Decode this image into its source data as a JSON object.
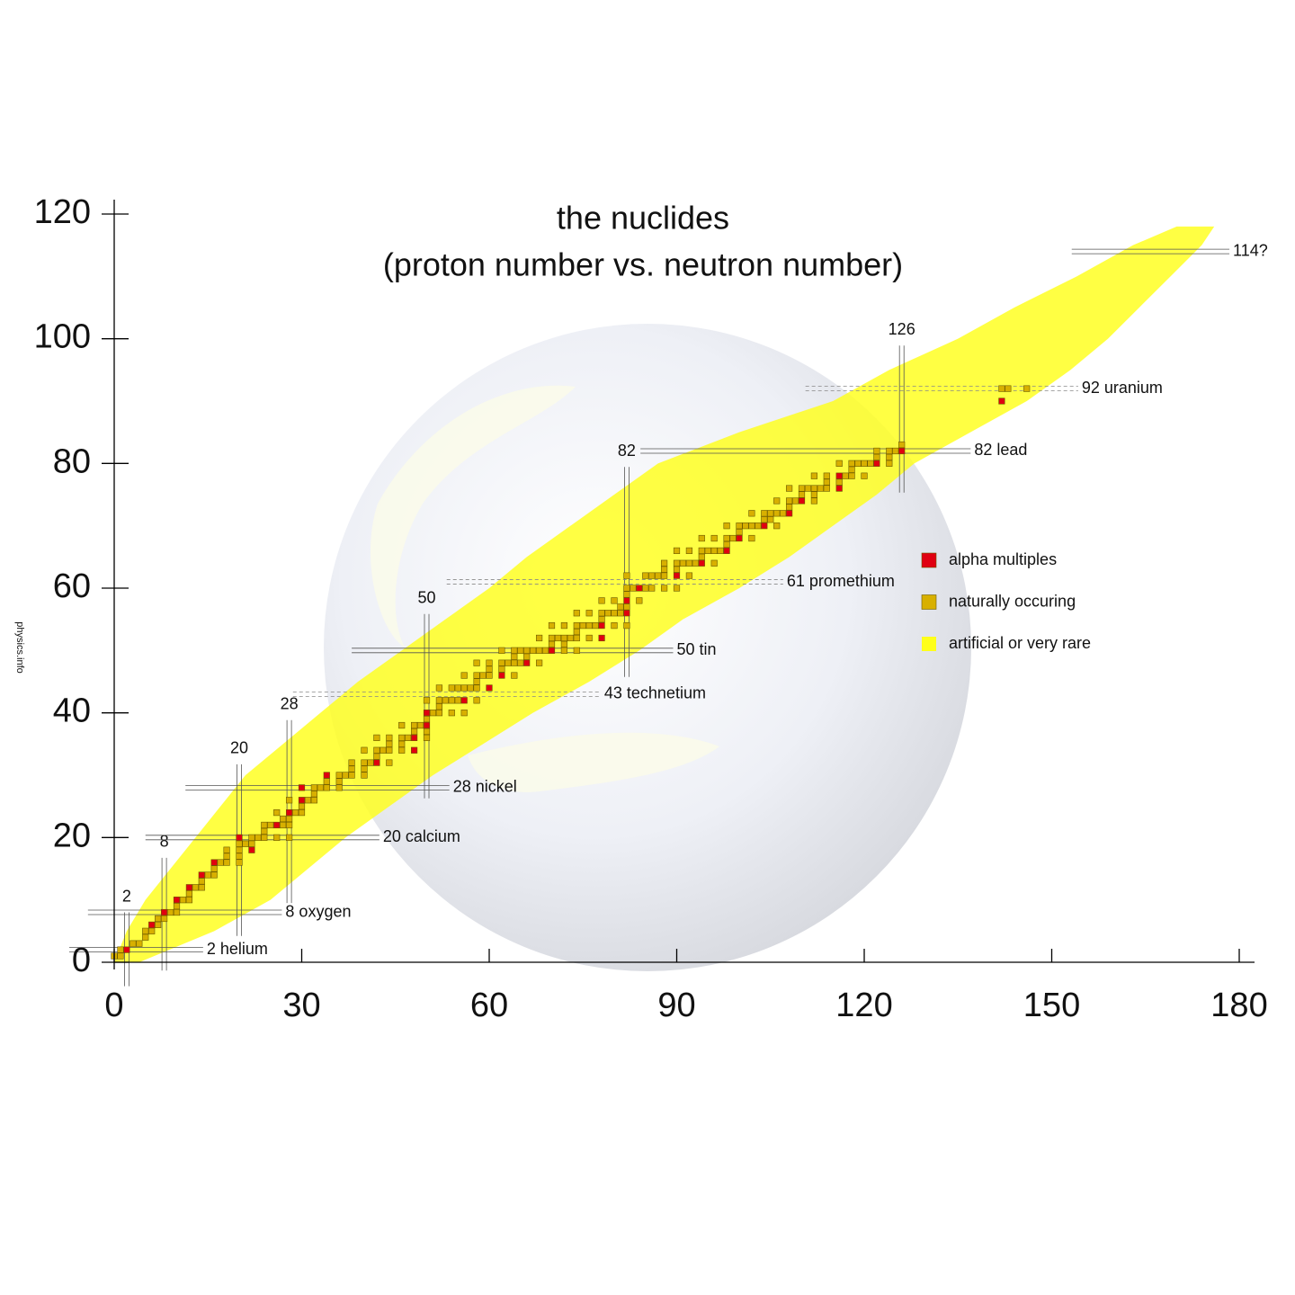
{
  "chart_data": {
    "type": "scatter",
    "title": "the nuclides",
    "subtitle": "(proton number vs. neutron number)",
    "credit": "physics.info",
    "xlim": [
      0,
      180
    ],
    "xticks": [
      0,
      30,
      60,
      90,
      120,
      150,
      180
    ],
    "ylim": [
      0,
      120
    ],
    "yticks": [
      0,
      20,
      40,
      60,
      80,
      100,
      120
    ],
    "legend": "right",
    "neutron_magic": [
      2,
      8,
      20,
      28,
      50,
      82,
      126
    ],
    "proton_lines": [
      {
        "value": 2,
        "label": "2 helium"
      },
      {
        "value": 8,
        "label": "8 oxygen"
      },
      {
        "value": 20,
        "label": "20 calcium"
      },
      {
        "value": 28,
        "label": "28 nickel"
      },
      {
        "value": 43,
        "label": "43 technetium",
        "dashed": true
      },
      {
        "value": 50,
        "label": "50 tin"
      },
      {
        "value": 61,
        "label": "61 promethium",
        "dashed": true
      },
      {
        "value": 82,
        "label": "82 lead"
      },
      {
        "value": 92,
        "label": "92 uranium",
        "dashed": true
      },
      {
        "value": 114,
        "label": "114?"
      }
    ],
    "series": [
      {
        "name": "alpha multiples",
        "color": "#e00010",
        "x": [
          2,
          6,
          8,
          10,
          12,
          14,
          16,
          22,
          20,
          26,
          28,
          30,
          30,
          34,
          42,
          48,
          48,
          50,
          50,
          56,
          60,
          62,
          66,
          70,
          78,
          78,
          82,
          82,
          84,
          90,
          94,
          98,
          100,
          104,
          108,
          110,
          116,
          116,
          122,
          126,
          142
        ],
        "values": [
          2,
          6,
          8,
          10,
          12,
          14,
          16,
          18,
          20,
          22,
          24,
          26,
          28,
          30,
          32,
          34,
          36,
          38,
          40,
          42,
          44,
          46,
          48,
          50,
          52,
          54,
          56,
          58,
          60,
          62,
          64,
          66,
          68,
          70,
          72,
          74,
          76,
          78,
          80,
          82,
          90
        ]
      },
      {
        "name": "naturally occuring",
        "color": "#d8b000",
        "x": [
          0,
          1,
          1,
          3,
          4,
          5,
          5,
          6,
          7,
          7,
          8,
          9,
          10,
          10,
          11,
          12,
          12,
          13,
          14,
          14,
          15,
          16,
          16,
          17,
          18,
          20,
          18,
          20,
          18,
          20,
          20,
          21,
          22,
          22,
          23,
          24,
          26,
          28,
          24,
          24,
          25,
          27,
          28,
          27,
          28,
          26,
          29,
          30,
          30,
          28,
          31,
          32,
          32,
          32,
          33,
          34,
          36,
          34,
          36,
          36,
          37,
          38,
          40,
          38,
          40,
          38,
          40,
          41,
          44,
          42,
          40,
          42,
          43,
          44,
          46,
          44,
          46,
          42,
          44,
          46,
          47,
          50,
          48,
          50,
          46,
          48,
          49,
          50,
          51,
          52,
          54,
          56,
          52,
          50,
          52,
          53,
          54,
          55,
          58,
          52,
          54,
          55,
          56,
          57,
          58,
          58,
          56,
          58,
          59,
          60,
          64,
          60,
          62,
          58,
          60,
          62,
          63,
          64,
          65,
          68,
          64,
          66,
          62,
          64,
          65,
          66,
          67,
          68,
          69,
          72,
          74,
          70,
          72,
          68,
          70,
          71,
          72,
          73,
          74,
          76,
          74,
          70,
          72,
          74,
          75,
          76,
          77,
          80,
          82,
          78,
          74,
          76,
          78,
          79,
          80,
          81,
          81,
          82,
          78,
          80,
          84,
          82,
          82,
          83,
          85,
          86,
          88,
          90,
          82,
          85,
          86,
          87,
          88,
          92,
          88,
          90,
          88,
          90,
          91,
          92,
          93,
          96,
          94,
          90,
          92,
          94,
          95,
          96,
          97,
          98,
          94,
          96,
          98,
          99,
          102,
          100,
          98,
          100,
          101,
          102,
          103,
          106,
          104,
          105,
          102,
          104,
          105,
          106,
          107,
          108,
          106,
          108,
          109,
          112,
          110,
          112,
          108,
          110,
          111,
          112,
          113,
          114,
          114,
          116,
          112,
          114,
          117,
          118,
          120,
          118,
          116,
          118,
          119,
          120,
          121,
          124,
          122,
          124,
          122,
          124,
          125,
          126,
          142,
          143,
          146
        ],
        "values": [
          1,
          1,
          2,
          3,
          3,
          4,
          5,
          5,
          6,
          7,
          7,
          8,
          8,
          9,
          10,
          10,
          11,
          12,
          12,
          13,
          14,
          14,
          15,
          16,
          16,
          16,
          17,
          17,
          18,
          18,
          19,
          19,
          19,
          20,
          20,
          20,
          20,
          20,
          21,
          22,
          22,
          22,
          22,
          23,
          23,
          24,
          24,
          24,
          25,
          26,
          26,
          26,
          27,
          28,
          28,
          28,
          28,
          29,
          29,
          30,
          30,
          30,
          30,
          31,
          31,
          32,
          32,
          32,
          32,
          33,
          34,
          34,
          34,
          34,
          34,
          35,
          35,
          36,
          36,
          36,
          36,
          36,
          37,
          37,
          38,
          38,
          38,
          39,
          40,
          40,
          40,
          40,
          41,
          42,
          42,
          42,
          42,
          42,
          42,
          44,
          44,
          44,
          44,
          44,
          44,
          45,
          46,
          46,
          46,
          46,
          46,
          47,
          47,
          48,
          48,
          48,
          48,
          48,
          48,
          48,
          49,
          49,
          50,
          50,
          50,
          50,
          50,
          50,
          50,
          50,
          50,
          51,
          51,
          52,
          52,
          52,
          52,
          52,
          52,
          52,
          53,
          54,
          54,
          54,
          54,
          54,
          54,
          54,
          54,
          55,
          56,
          56,
          56,
          56,
          56,
          56,
          57,
          57,
          58,
          58,
          58,
          59,
          60,
          60,
          60,
          60,
          60,
          60,
          62,
          62,
          62,
          62,
          62,
          62,
          63,
          63,
          64,
          64,
          64,
          64,
          64,
          64,
          65,
          66,
          66,
          66,
          66,
          66,
          66,
          67,
          68,
          68,
          68,
          68,
          68,
          69,
          70,
          70,
          70,
          70,
          70,
          70,
          71,
          71,
          72,
          72,
          72,
          72,
          72,
          73,
          74,
          74,
          74,
          74,
          75,
          75,
          76,
          76,
          76,
          76,
          76,
          76,
          77,
          77,
          78,
          78,
          78,
          78,
          78,
          79,
          80,
          80,
          80,
          80,
          80,
          80,
          81,
          81,
          82,
          82,
          82,
          83,
          92,
          92,
          92
        ]
      },
      {
        "name": "artificial or very rare",
        "color": "#ffff1a",
        "values": [
          0,
          5,
          10,
          15,
          20,
          25,
          30,
          35,
          40,
          45,
          50,
          55,
          60,
          65,
          70,
          75,
          80,
          85,
          90,
          95,
          100,
          105,
          110,
          115,
          118
        ],
        "x_low": [
          0,
          2,
          5,
          9,
          13,
          17,
          21,
          27,
          33,
          39,
          46,
          53,
          60,
          66,
          73,
          80,
          87,
          100,
          115,
          124,
          135,
          144,
          154,
          163,
          170
        ],
        "x_high": [
          4,
          16,
          25,
          31,
          37,
          44,
          51,
          59,
          67,
          76,
          84,
          91,
          100,
          108,
          115,
          122,
          128,
          137,
          146,
          153,
          159,
          164,
          169,
          174,
          176
        ]
      }
    ]
  }
}
